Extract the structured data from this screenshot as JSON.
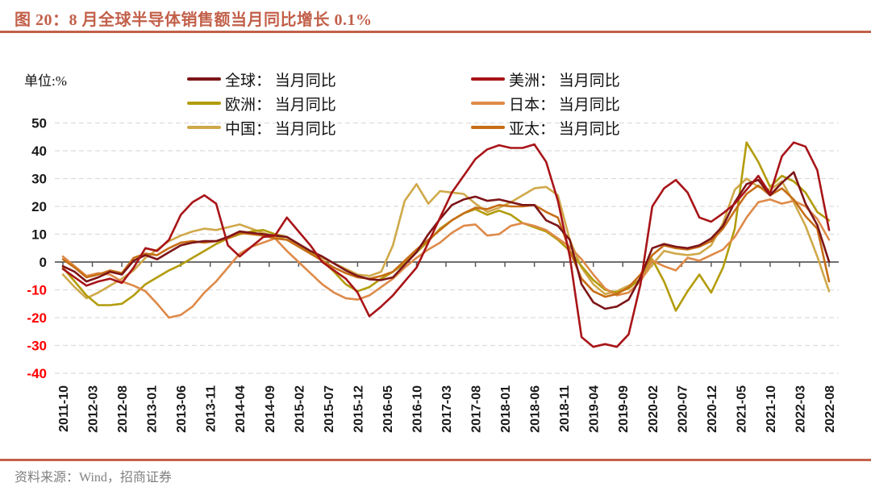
{
  "header": {
    "title": "图 20：8 月全球半导体销售额当月同比增长 0.1%"
  },
  "unit_label": "单位:%",
  "source": {
    "text": "资料来源：Wind，招商证券"
  },
  "accent_color": "#C2604A",
  "legend": [
    {
      "id": "global",
      "label": "全球： 当月同比",
      "color": "#7D1518"
    },
    {
      "id": "americas",
      "label": "美洲： 当月同比",
      "color": "#A81418"
    },
    {
      "id": "europe",
      "label": "欧洲： 当月同比",
      "color": "#B39C0C"
    },
    {
      "id": "japan",
      "label": "日本： 当月同比",
      "color": "#DE8A49"
    },
    {
      "id": "china",
      "label": "中国： 当月同比",
      "color": "#CFA94A"
    },
    {
      "id": "asiapac",
      "label": "亚太： 当月同比",
      "color": "#C66E16"
    }
  ],
  "chart_data": {
    "type": "line",
    "title": "8 月全球半导体销售额当月同比增长 0.1%",
    "ylabel": "单位:%",
    "ylim": [
      -40,
      50
    ],
    "y_ticks": [
      50,
      40,
      30,
      20,
      10,
      0,
      -10,
      -20,
      -30,
      -40
    ],
    "negative_tick_color": "#FF0000",
    "positive_tick_color": "#1A1A1A",
    "grid": "dashed-horizontal",
    "legend_position": "top-center",
    "x_tick_labels": [
      "2011-10",
      "2012-03",
      "2012-08",
      "2013-01",
      "2013-06",
      "2013-11",
      "2014-04",
      "2014-09",
      "2015-02",
      "2015-07",
      "2015-12",
      "2016-05",
      "2016-10",
      "2017-03",
      "2017-08",
      "2018-01",
      "2018-06",
      "2018-11",
      "2019-04",
      "2019-09",
      "2020-02",
      "2020-07",
      "2020-12",
      "2021-05",
      "2021-10",
      "2022-03",
      "2022-08"
    ],
    "x_months_per_tick": 5,
    "sample_interval_months": 2,
    "x_start": "2011-10",
    "x_end": "2022-08",
    "draw_order": [
      4,
      2,
      3,
      5,
      0,
      1
    ],
    "series": [
      {
        "id": "global",
        "name": "全球：当月同比",
        "color": "#7D1518",
        "values": [
          -1.5,
          -3.5,
          -7,
          -5.5,
          -3.5,
          -4.5,
          0.5,
          2.5,
          1,
          3.5,
          6,
          7,
          7.5,
          7.5,
          9,
          11,
          10.5,
          10,
          9.5,
          9,
          6.5,
          4,
          2,
          -0.5,
          -3,
          -5,
          -6.2,
          -6.5,
          -5.5,
          -1,
          3.5,
          10,
          15.5,
          20.5,
          22.5,
          23.5,
          22,
          22.5,
          21.5,
          20.5,
          20.5,
          15,
          13,
          8,
          -8,
          -14.5,
          -16.8,
          -16,
          -13.5,
          -5.5,
          5,
          6.5,
          5.5,
          5,
          6,
          8.5,
          13,
          21.5,
          28,
          29.5,
          24,
          28.5,
          32.3,
          21,
          13.3,
          0.1
        ]
      },
      {
        "id": "americas",
        "name": "美洲：当月同比",
        "color": "#A81418",
        "values": [
          -2.5,
          -5.5,
          -8.5,
          -7,
          -6,
          -7.5,
          -2,
          5,
          4,
          8,
          17,
          21.5,
          24,
          21,
          6,
          2,
          5.5,
          9,
          9.5,
          16,
          11,
          6,
          0,
          -3,
          -6,
          -11,
          -19.5,
          -16,
          -12,
          -7,
          -2,
          7,
          16,
          25,
          31,
          37,
          40.5,
          42,
          41,
          41,
          42.3,
          36,
          22,
          2,
          -27,
          -30.5,
          -29.5,
          -30.5,
          -26,
          -8,
          20,
          26.5,
          29.5,
          25,
          16,
          14.5,
          17.5,
          21,
          26,
          31,
          24.5,
          38,
          43,
          41.5,
          33,
          11.5
        ]
      },
      {
        "id": "europe",
        "name": "欧洲：当月同比",
        "color": "#B39C0C",
        "values": [
          -2,
          -7,
          -12,
          -15.5,
          -15.5,
          -15,
          -12,
          -8,
          -5.5,
          -3,
          -1,
          1.5,
          4,
          6.5,
          8.5,
          10,
          11,
          11.5,
          10,
          9,
          6.5,
          3.5,
          0.5,
          -3.5,
          -8,
          -10.5,
          -9,
          -6,
          -3.5,
          -0.5,
          3.5,
          7.5,
          12,
          15,
          17.5,
          19,
          17,
          18.5,
          17,
          14,
          12.5,
          11,
          8,
          4,
          -1.5,
          -6.5,
          -10,
          -11,
          -9.5,
          -6,
          1,
          -7,
          -17.5,
          -10.5,
          -4.5,
          -11,
          -2,
          12,
          43,
          36,
          27,
          31,
          29,
          25,
          18,
          15
        ]
      },
      {
        "id": "japan",
        "name": "日本：当月同比",
        "color": "#DE8A49",
        "values": [
          2,
          -1.5,
          -5,
          -4,
          -4.5,
          -7,
          -8.5,
          -10.5,
          -15,
          -20,
          -19,
          -16,
          -11,
          -7,
          -2,
          3,
          5.5,
          7,
          8.5,
          4,
          0,
          -4,
          -8,
          -11,
          -13,
          -13.5,
          -12,
          -9,
          -6,
          -2,
          1.5,
          4.5,
          7,
          10.5,
          13,
          13.5,
          9.5,
          10,
          13,
          14,
          13,
          11.5,
          8.5,
          5.5,
          1,
          -4.5,
          -9.5,
          -12,
          -11,
          -7,
          0.5,
          -1.5,
          -3,
          1.5,
          0.5,
          2.5,
          4.5,
          9,
          16,
          21.5,
          22.5,
          21,
          22,
          20,
          15.5,
          8
        ]
      },
      {
        "id": "china",
        "name": "中国：当月同比",
        "color": "#CFA94A",
        "values": [
          -4.5,
          -9,
          -13,
          -11,
          -8.5,
          -6,
          -3,
          1.5,
          4.5,
          7.5,
          9.5,
          11,
          12,
          11.5,
          12.5,
          13.5,
          12,
          10.5,
          9,
          8,
          6,
          3.5,
          1.5,
          -0.5,
          -2.5,
          -4.5,
          -5,
          -3.5,
          6,
          22,
          28,
          21,
          25.5,
          25,
          24.5,
          21,
          18,
          19.5,
          21.5,
          24,
          26.5,
          27,
          24,
          8,
          -2,
          -8,
          -11.5,
          -10.5,
          -8.5,
          -6.5,
          -1,
          4,
          3,
          2.5,
          3,
          6,
          14,
          26,
          30,
          27,
          26,
          29,
          21.5,
          13,
          2,
          -10.5
        ]
      },
      {
        "id": "asiapac",
        "name": "亚太：当月同比",
        "color": "#C66E16",
        "values": [
          1,
          -2,
          -5.5,
          -4.5,
          -3,
          -4,
          1.5,
          3,
          2.5,
          5,
          7,
          7.5,
          7,
          7.5,
          8.5,
          10.5,
          10,
          9.5,
          8.5,
          8,
          5.5,
          3,
          0.5,
          -2,
          -4,
          -5.5,
          -6,
          -5,
          -3.5,
          0.5,
          4.5,
          8,
          11.5,
          15,
          17.5,
          19.5,
          19,
          20.5,
          20,
          20,
          20.5,
          18,
          16,
          4,
          -6,
          -10.5,
          -12.5,
          -11.5,
          -9,
          -4.5,
          2.5,
          6,
          5,
          4.5,
          5.5,
          7.5,
          12,
          18.5,
          24.5,
          27.5,
          24,
          26.5,
          22.5,
          16.5,
          12,
          -7
        ]
      }
    ]
  }
}
